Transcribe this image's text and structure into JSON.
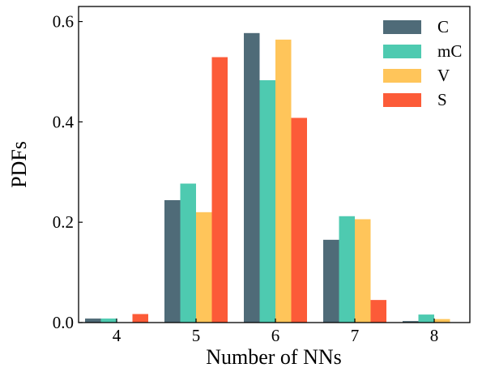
{
  "chart_data": {
    "type": "bar",
    "xlabel": "Number of NNs",
    "ylabel": "PDFs",
    "categories": [
      "4",
      "5",
      "6",
      "7",
      "8"
    ],
    "ylim": [
      0,
      0.63
    ],
    "yticks": [
      "0.0",
      "0.2",
      "0.4",
      "0.6"
    ],
    "ytick_values": [
      0,
      0.2,
      0.4,
      0.6
    ],
    "grid": false,
    "legend_position": "top-right",
    "series": [
      {
        "name": "C",
        "color": "#4f6b78",
        "values": [
          0.008,
          0.244,
          0.577,
          0.165,
          0.003
        ]
      },
      {
        "name": "mC",
        "color": "#4ecab0",
        "values": [
          0.008,
          0.277,
          0.483,
          0.212,
          0.016
        ]
      },
      {
        "name": "V",
        "color": "#ffc55a",
        "values": [
          0.0,
          0.22,
          0.564,
          0.206,
          0.007
        ]
      },
      {
        "name": "S",
        "color": "#fc5b38",
        "values": [
          0.017,
          0.529,
          0.408,
          0.045,
          0.0
        ]
      }
    ]
  }
}
